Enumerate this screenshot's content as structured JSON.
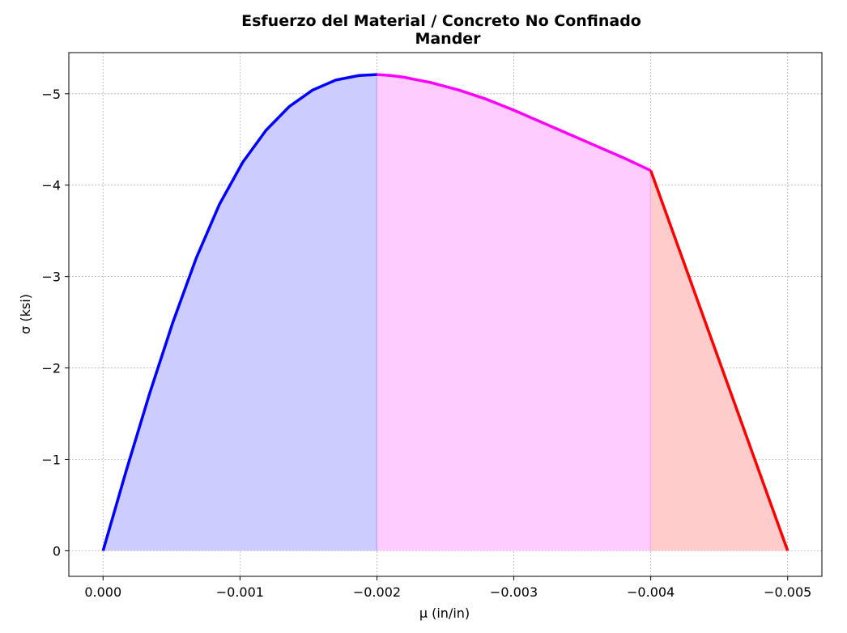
{
  "chart_data": {
    "type": "area",
    "title": "Esfuerzo del Material / Concreto No Confinado",
    "subtitle": "Mander",
    "xlabel": "μ (in/in)",
    "ylabel": "σ (ksi)",
    "xlim": [
      0.00025,
      -0.00525
    ],
    "ylim": [
      0.28,
      -5.45
    ],
    "x_ticks": [
      0.0,
      -0.001,
      -0.002,
      -0.003,
      -0.004,
      -0.005
    ],
    "x_tick_labels": [
      "0.000",
      "−0.001",
      "−0.002",
      "−0.003",
      "−0.004",
      "−0.005"
    ],
    "y_ticks": [
      0,
      -1,
      -2,
      -3,
      -4,
      -5
    ],
    "y_tick_labels": [
      "0",
      "−1",
      "−2",
      "−3",
      "−4",
      "−5"
    ],
    "grid": true,
    "legend": "none",
    "series": [
      {
        "color": "#0000ff",
        "fill": "#ccccff",
        "x": [
          0.0,
          -0.00017,
          -0.00034,
          -0.00051,
          -0.00068,
          -0.00085,
          -0.00102,
          -0.00119,
          -0.00136,
          -0.00153,
          -0.0017,
          -0.00187,
          -0.002
        ],
        "y": [
          0.0,
          -0.88,
          -1.72,
          -2.5,
          -3.2,
          -3.79,
          -4.25,
          -4.6,
          -4.86,
          -5.04,
          -5.15,
          -5.2,
          -5.21
        ]
      },
      {
        "color": "#ff00ff",
        "fill": "#ffccff",
        "x": [
          -0.002,
          -0.0021,
          -0.0022,
          -0.0024,
          -0.0026,
          -0.0028,
          -0.003,
          -0.0032,
          -0.0034,
          -0.0036,
          -0.0038,
          -0.004
        ],
        "y": [
          -5.21,
          -5.2,
          -5.18,
          -5.12,
          -5.04,
          -4.94,
          -4.82,
          -4.69,
          -4.56,
          -4.43,
          -4.3,
          -4.16
        ]
      },
      {
        "color": "#ff0000",
        "fill": "#ffcccc",
        "x": [
          -0.004,
          -0.005
        ],
        "y": [
          -4.16,
          0.0
        ]
      }
    ]
  }
}
